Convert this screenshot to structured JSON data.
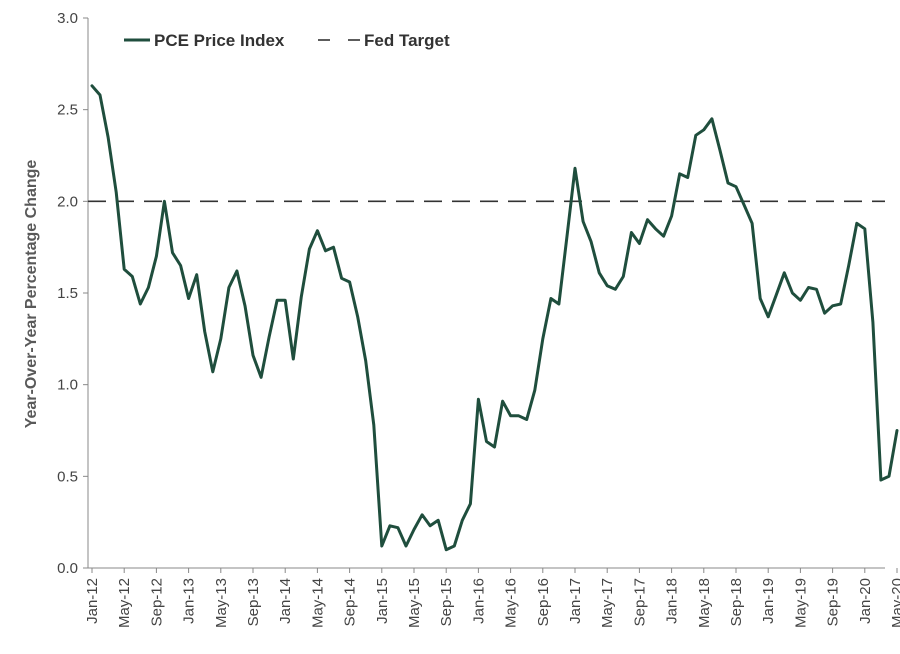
{
  "chart_data": {
    "type": "line",
    "title": "",
    "xlabel": "",
    "ylabel": "Year-Over-Year Percentage Change",
    "ylim": [
      0,
      3
    ],
    "yticks": [
      "0.0",
      "0.5",
      "1.0",
      "1.5",
      "2.0",
      "2.5",
      "3.0"
    ],
    "xtick_labels": [
      "Jan-12",
      "May-12",
      "Sep-12",
      "Jan-13",
      "May-13",
      "Sep-13",
      "Jan-14",
      "May-14",
      "Sep-14",
      "Jan-15",
      "May-15",
      "Sep-15",
      "Jan-16",
      "May-16",
      "Sep-16",
      "Jan-17",
      "May-17",
      "Sep-17",
      "Jan-18",
      "May-18",
      "Sep-18",
      "Jan-19",
      "May-19",
      "Sep-19",
      "Jan-20",
      "May-20"
    ],
    "x_start": "Jan-12",
    "grid": false,
    "legend_position": "top-left",
    "series": [
      {
        "name": "PCE Price Index",
        "color": "#1f4e3d",
        "style": "solid",
        "values": [
          2.63,
          2.58,
          2.35,
          2.05,
          1.63,
          1.59,
          1.44,
          1.53,
          1.7,
          2.0,
          1.72,
          1.65,
          1.47,
          1.6,
          1.29,
          1.07,
          1.25,
          1.53,
          1.62,
          1.43,
          1.16,
          1.04,
          1.26,
          1.46,
          1.46,
          1.14,
          1.48,
          1.74,
          1.84,
          1.73,
          1.75,
          1.58,
          1.56,
          1.37,
          1.13,
          0.78,
          0.12,
          0.23,
          0.22,
          0.12,
          0.21,
          0.29,
          0.23,
          0.26,
          0.1,
          0.12,
          0.26,
          0.35,
          0.92,
          0.69,
          0.66,
          0.91,
          0.83,
          0.83,
          0.81,
          0.97,
          1.25,
          1.47,
          1.44,
          1.81,
          2.18,
          1.89,
          1.78,
          1.61,
          1.54,
          1.52,
          1.59,
          1.83,
          1.77,
          1.9,
          1.85,
          1.81,
          1.92,
          2.15,
          2.13,
          2.36,
          2.39,
          2.45,
          2.28,
          2.1,
          2.08,
          1.98,
          1.88,
          1.47,
          1.37,
          1.49,
          1.61,
          1.5,
          1.46,
          1.53,
          1.52,
          1.39,
          1.43,
          1.44,
          1.65,
          1.88,
          1.85,
          1.34,
          0.48,
          0.5,
          0.75
        ]
      },
      {
        "name": "Fed Target",
        "color": "#333333",
        "style": "dashed",
        "value": 2.0
      }
    ]
  }
}
